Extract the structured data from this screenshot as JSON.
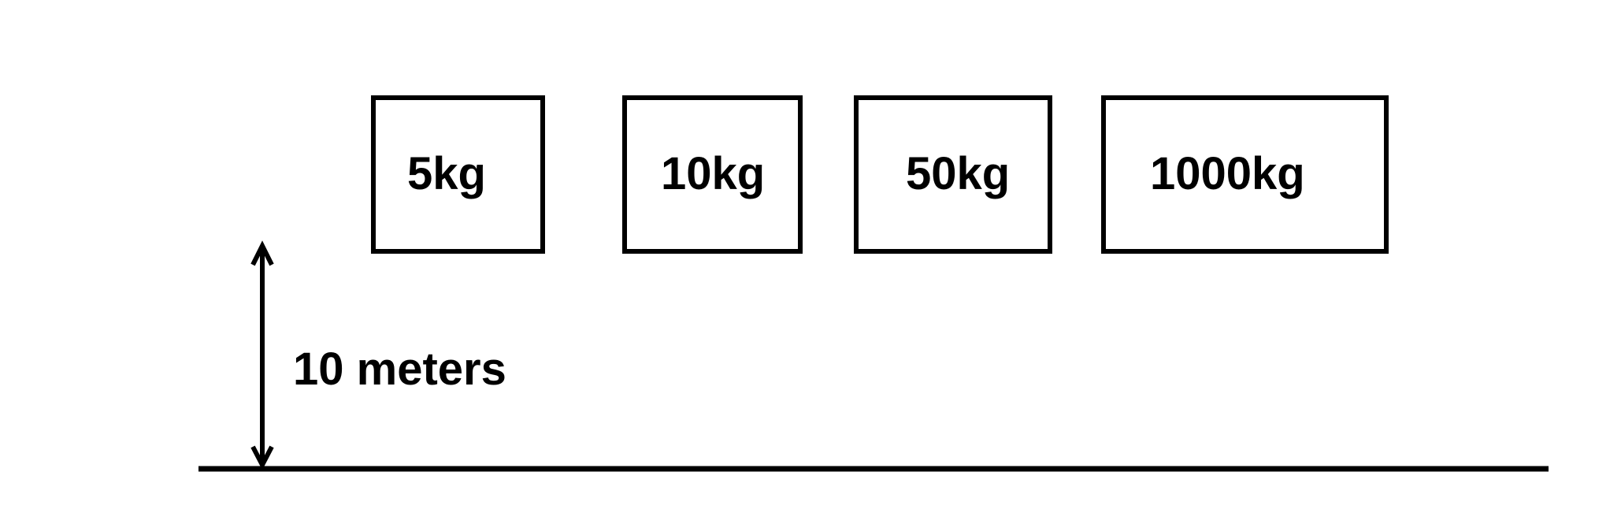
{
  "masses": [
    {
      "label": "5kg"
    },
    {
      "label": "10kg"
    },
    {
      "label": "50kg"
    },
    {
      "label": "1000kg"
    }
  ],
  "height": {
    "label": "10 meters"
  },
  "colors": {
    "stroke": "#000000",
    "background": "#ffffff"
  }
}
